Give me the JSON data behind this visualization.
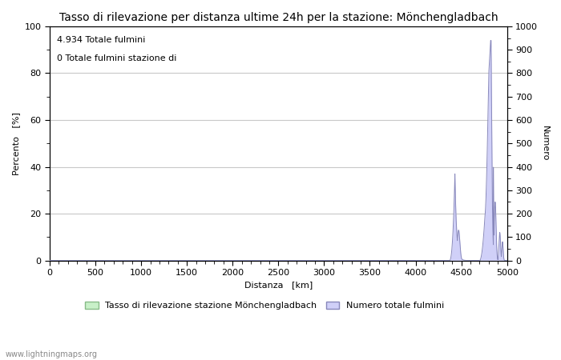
{
  "title": "Tasso di rilevazione per distanza ultime 24h per la stazione: Mönchengladbach",
  "xlabel": "Distanza   [km]",
  "ylabel_left": "Percento   [%]",
  "ylabel_right": "Numero",
  "annotation_line1": "4.934 Totale fulmini",
  "annotation_line2": "0 Totale fulmini stazione di",
  "xlim": [
    0,
    5000
  ],
  "ylim_left": [
    0,
    100
  ],
  "ylim_right": [
    0,
    1000
  ],
  "xticks": [
    0,
    500,
    1000,
    1500,
    2000,
    2500,
    3000,
    3500,
    4000,
    4500,
    5000
  ],
  "yticks_left": [
    0,
    20,
    40,
    60,
    80,
    100
  ],
  "yticks_right": [
    0,
    100,
    200,
    300,
    400,
    500,
    600,
    700,
    800,
    900,
    1000
  ],
  "legend_label_left": "Tasso di rilevazione stazione Mönchengladbach",
  "legend_label_right": "Numero totale fulmini",
  "watermark": "www.lightningmaps.org",
  "background_color": "#ffffff",
  "plot_bg_color": "#ffffff",
  "grid_color": "#c8c8c8",
  "fill_color_blue": "#d0d0f8",
  "fill_color_green": "#c8f0c8",
  "line_color_blue": "#8888bb",
  "line_color_green": "#88bb88",
  "title_fontsize": 10,
  "label_fontsize": 8,
  "tick_fontsize": 8,
  "annot_fontsize": 8
}
